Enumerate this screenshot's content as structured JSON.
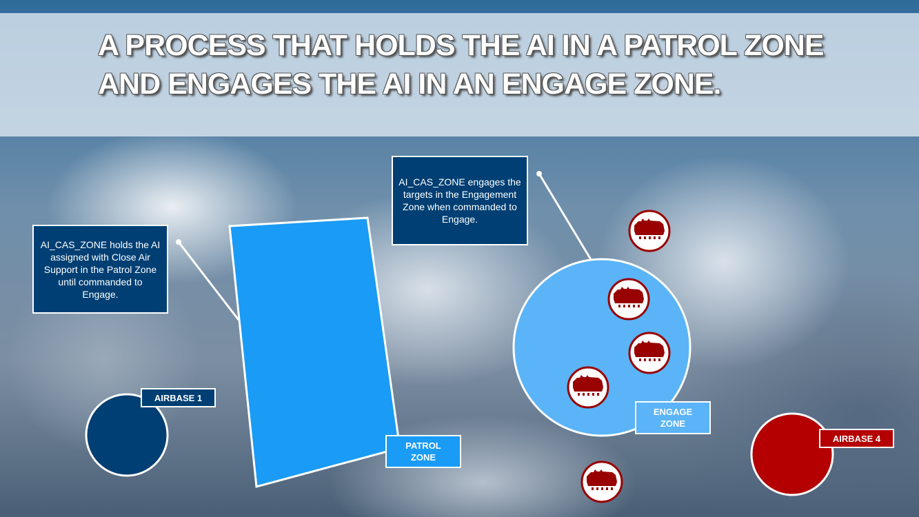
{
  "title": "A PROCESS THAT HOLDS THE AI IN A PATROL ZONE AND ENGAGES THE AI IN AN ENGAGE ZONE.",
  "callouts": {
    "patrol": "AI_CAS_ZONE holds the AI assigned with Close Air Support in the Patrol Zone until commanded to Engage.",
    "engage": "AI_CAS_ZONE engages the targets in the Engagement Zone when commanded to Engage."
  },
  "labels": {
    "airbase1": "AIRBASE 1",
    "patrol_zone": "PATROL ZONE",
    "engage_zone": "ENGAGE ZONE",
    "airbase4": "AIRBASE 4"
  },
  "icons": {
    "target": "armored-vehicle-icon"
  },
  "colors": {
    "navy": "#003f73",
    "patrol": "#1a9bf5",
    "engage": "#5ab4f7",
    "enemy": "#b40000",
    "target": "#990000"
  }
}
